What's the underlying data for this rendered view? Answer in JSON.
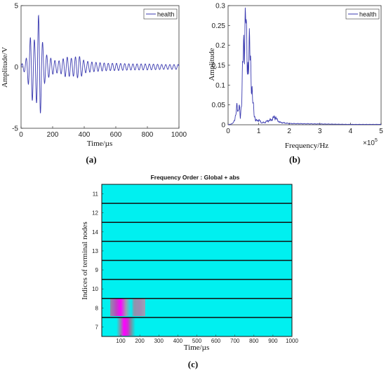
{
  "chart_data": [
    {
      "panel_label": "(a)",
      "type": "line",
      "xlabel": "Time/µs",
      "ylabel": "Amplitude/V",
      "xlim": [
        0,
        1000
      ],
      "ylim": [
        -5,
        5
      ],
      "xticks": [
        "0",
        "200",
        "400",
        "600",
        "800",
        "1000"
      ],
      "yticks": [
        "-5",
        "0",
        "5"
      ],
      "legend": "health",
      "legend_position": "top-right",
      "color": "#3a3ab0",
      "series": [
        {
          "name": "health",
          "x": [
            0,
            10,
            20,
            30,
            40,
            50,
            60,
            70,
            80,
            90,
            100,
            110,
            120,
            130,
            140,
            150,
            160,
            170,
            180,
            200,
            220,
            240,
            260,
            280,
            300,
            320,
            340,
            360,
            380,
            400,
            450,
            500,
            550,
            600,
            700,
            800,
            900,
            1000
          ],
          "envelope": [
            0.2,
            0.3,
            0.4,
            0.6,
            1.0,
            1.7,
            2.5,
            2.8,
            2.4,
            2.0,
            3.2,
            4.2,
            4.4,
            2.4,
            1.8,
            1.3,
            1.0,
            0.9,
            0.8,
            0.6,
            0.5,
            0.5,
            0.6,
            0.8,
            0.8,
            0.7,
            0.8,
            0.9,
            0.8,
            0.5,
            0.4,
            0.35,
            0.3,
            0.3,
            0.25,
            0.25,
            0.2,
            0.2
          ]
        }
      ]
    },
    {
      "panel_label": "(b)",
      "type": "line",
      "xlabel": "Frequency/Hz",
      "ylabel": "Amplitude",
      "xlim": [
        0,
        5
      ],
      "x_multiplier": "×10^5",
      "x_multiplier_base": "×10",
      "x_multiplier_exp": "5",
      "ylim": [
        0,
        0.3
      ],
      "xticks": [
        "0",
        "1",
        "2",
        "3",
        "4",
        "5"
      ],
      "yticks": [
        "0",
        "0.05",
        "0.1",
        "0.15",
        "0.2",
        "0.25",
        "0.3"
      ],
      "legend": "health",
      "legend_position": "top-right",
      "color": "#3a3ab0",
      "series": [
        {
          "name": "health",
          "x": [
            0,
            0.15,
            0.25,
            0.3,
            0.33,
            0.36,
            0.4,
            0.45,
            0.5,
            0.55,
            0.58,
            0.6,
            0.63,
            0.66,
            0.7,
            0.73,
            0.76,
            0.8,
            0.85,
            0.9,
            1.0,
            1.1,
            1.2,
            1.3,
            1.4,
            1.5,
            1.55,
            1.6,
            1.7,
            2.0,
            3.0,
            4.0,
            5.0
          ],
          "y": [
            0.0,
            0.003,
            0.02,
            0.06,
            0.03,
            0.045,
            0.02,
            0.07,
            0.19,
            0.25,
            0.265,
            0.2,
            0.17,
            0.15,
            0.185,
            0.17,
            0.12,
            0.06,
            0.03,
            0.01,
            0.012,
            0.005,
            0.006,
            0.01,
            0.012,
            0.018,
            0.02,
            0.012,
            0.006,
            0.003,
            0.002,
            0.001,
            0.001
          ]
        }
      ]
    },
    {
      "panel_label": "(c)",
      "type": "heatmap",
      "title": "Frequency Order : Global + abs",
      "xlabel": "Time/µs",
      "ylabel": "Indices of terminal nodes",
      "xlim": [
        0,
        1000
      ],
      "xticks": [
        "100",
        "200",
        "300",
        "400",
        "500",
        "600",
        "700",
        "800",
        "900",
        "1000"
      ],
      "rows": [
        "11",
        "12",
        "14",
        "13",
        "9",
        "10",
        "8",
        "7"
      ],
      "background_color": "#00f0f0",
      "active_segments": [
        {
          "row": "8",
          "x": [
            60,
            210
          ],
          "color": "gray-magenta"
        },
        {
          "row": "7",
          "x": [
            100,
            200
          ],
          "color": "gray-magenta"
        }
      ]
    }
  ]
}
